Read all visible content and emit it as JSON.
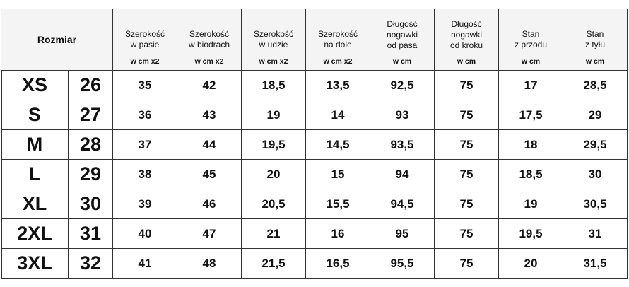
{
  "header": {
    "title": "Rozmiar",
    "columns": [
      {
        "lines": [
          "Szerokość",
          "w pasie"
        ],
        "unit": "w cm x2"
      },
      {
        "lines": [
          "Szerokość",
          "w biodrach"
        ],
        "unit": "w cm x2"
      },
      {
        "lines": [
          "Szerokość",
          "w udzie"
        ],
        "unit": "w cm x2"
      },
      {
        "lines": [
          "Szerokość",
          "na dole"
        ],
        "unit": "w cm x2"
      },
      {
        "lines": [
          "Długość",
          "nogawki",
          "od pasa"
        ],
        "unit": "w cm"
      },
      {
        "lines": [
          "Długość",
          "nogawki",
          "od kroku"
        ],
        "unit": "w cm"
      },
      {
        "lines": [
          "Stan",
          "z przodu"
        ],
        "unit": "w cm"
      },
      {
        "lines": [
          "Stan",
          "z tyłu"
        ],
        "unit": "w cm"
      }
    ]
  },
  "table": {
    "rows": [
      [
        "XS",
        "26",
        "35",
        "42",
        "18,5",
        "13,5",
        "92,5",
        "75",
        "17",
        "28,5"
      ],
      [
        "S",
        "27",
        "36",
        "43",
        "19",
        "14",
        "93",
        "75",
        "17,5",
        "29"
      ],
      [
        "M",
        "28",
        "37",
        "44",
        "19,5",
        "14,5",
        "93,5",
        "75",
        "18",
        "29,5"
      ],
      [
        "L",
        "29",
        "38",
        "45",
        "20",
        "15",
        "94",
        "75",
        "18,5",
        "30"
      ],
      [
        "XL",
        "30",
        "39",
        "46",
        "20,5",
        "15,5",
        "94,5",
        "75",
        "19",
        "30,5"
      ],
      [
        "2XL",
        "31",
        "40",
        "47",
        "21",
        "16",
        "95",
        "75",
        "19,5",
        "31"
      ],
      [
        "3XL",
        "32",
        "41",
        "48",
        "21,5",
        "16,5",
        "95,5",
        "75",
        "20",
        "31,5"
      ]
    ]
  }
}
